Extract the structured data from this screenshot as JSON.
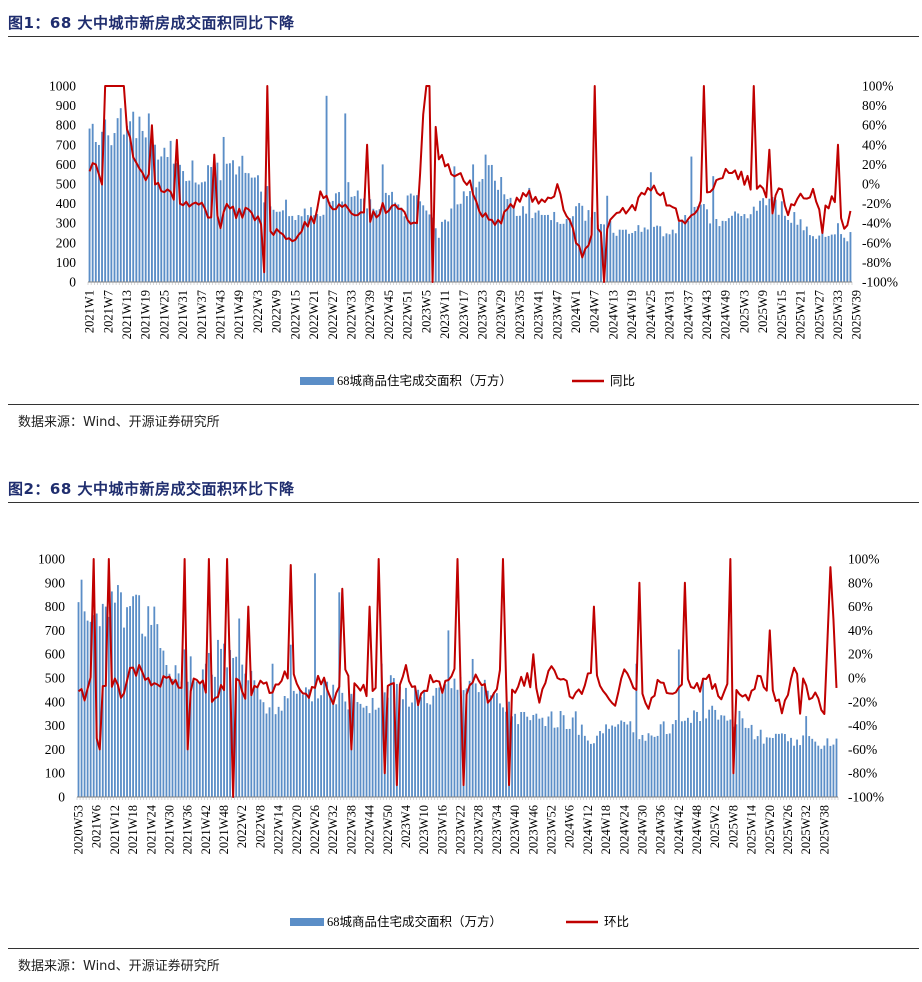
{
  "colors": {
    "bar": "#5b8ec7",
    "line": "#c00000",
    "title": "#1f2d6e"
  },
  "figures": [
    {
      "title": "图1：68 大中城市新房成交面积同比下降",
      "source": "数据来源：Wind、开源证券研究所",
      "legend": {
        "bar": "68城商品住宅成交面积（万方）",
        "line": "同比"
      }
    },
    {
      "title": "图2：68 大中城市新房成交面积环比下降",
      "source": "数据来源：Wind、开源证券研究所",
      "legend": {
        "bar": "68城商品住宅成交面积（万方）",
        "line": "环比"
      }
    }
  ],
  "chart_data": [
    {
      "type": "bar+line",
      "title": "图1：68 大中城市新房成交面积同比下降",
      "x_start": {
        "year": 2021,
        "week": 1
      },
      "x_count": 245,
      "x_tick_labels": [
        "2021W1",
        "2021W7",
        "2021W13",
        "2021W19",
        "2021W25",
        "2021W31",
        "2021W37",
        "2021W43",
        "2021W49",
        "2022W3",
        "2022W9",
        "2022W15",
        "2022W21",
        "2022W27",
        "2022W33",
        "2022W39",
        "2022W45",
        "2022W51",
        "2023W5",
        "2023W11",
        "2023W17",
        "2023W23",
        "2023W29",
        "2023W35",
        "2023W41",
        "2023W47",
        "2024W1",
        "2024W7",
        "2024W13",
        "2024W19",
        "2024W25",
        "2024W31",
        "2024W37",
        "2024W43",
        "2024W49",
        "2025W3",
        "2025W9",
        "2025W15",
        "2025W21",
        "2025W27",
        "2025W33",
        "2025W39"
      ],
      "y_left": {
        "min": 0,
        "max": 1000,
        "ticks": [
          "0",
          "100",
          "200",
          "300",
          "400",
          "500",
          "600",
          "700",
          "800",
          "900",
          "1000"
        ]
      },
      "y_right": {
        "min": -100,
        "max": 100,
        "ticks": [
          "-100%",
          "-80%",
          "-60%",
          "-40%",
          "-20%",
          "0%",
          "20%",
          "40%",
          "60%",
          "80%",
          "100%"
        ]
      },
      "bar_anchors": [
        [
          0,
          760
        ],
        [
          6,
          800
        ],
        [
          10,
          840
        ],
        [
          16,
          780
        ],
        [
          22,
          700
        ],
        [
          28,
          580
        ],
        [
          34,
          560
        ],
        [
          40,
          560
        ],
        [
          44,
          620
        ],
        [
          48,
          600
        ],
        [
          52,
          560
        ],
        [
          56,
          470
        ],
        [
          60,
          380
        ],
        [
          66,
          330
        ],
        [
          72,
          360
        ],
        [
          78,
          420
        ],
        [
          82,
          480
        ],
        [
          86,
          470
        ],
        [
          90,
          400
        ],
        [
          96,
          440
        ],
        [
          100,
          360
        ],
        [
          104,
          450
        ],
        [
          110,
          380
        ],
        [
          112,
          250
        ],
        [
          116,
          380
        ],
        [
          120,
          460
        ],
        [
          124,
          520
        ],
        [
          128,
          560
        ],
        [
          132,
          540
        ],
        [
          136,
          360
        ],
        [
          140,
          390
        ],
        [
          146,
          340
        ],
        [
          150,
          320
        ],
        [
          156,
          380
        ],
        [
          162,
          340
        ],
        [
          166,
          300
        ],
        [
          170,
          260
        ],
        [
          176,
          300
        ],
        [
          180,
          290
        ],
        [
          186,
          230
        ],
        [
          190,
          310
        ],
        [
          196,
          370
        ],
        [
          202,
          320
        ],
        [
          208,
          330
        ],
        [
          212,
          360
        ],
        [
          216,
          420
        ],
        [
          222,
          380
        ],
        [
          228,
          310
        ],
        [
          232,
          230
        ],
        [
          236,
          260
        ],
        [
          240,
          230
        ],
        [
          244,
          240
        ]
      ],
      "bar_spikes": [
        [
          8,
          760
        ],
        [
          13,
          820
        ],
        [
          19,
          860
        ],
        [
          26,
          720
        ],
        [
          33,
          620
        ],
        [
          43,
          740
        ],
        [
          63,
          420
        ],
        [
          76,
          950
        ],
        [
          82,
          860
        ],
        [
          94,
          600
        ],
        [
          117,
          590
        ],
        [
          123,
          600
        ],
        [
          127,
          650
        ],
        [
          141,
          480
        ],
        [
          166,
          440
        ],
        [
          180,
          560
        ],
        [
          193,
          640
        ],
        [
          200,
          540
        ],
        [
          228,
          320
        ],
        [
          240,
          300
        ]
      ],
      "line_anchors": [
        [
          0,
          10
        ],
        [
          2,
          25
        ],
        [
          4,
          5
        ],
        [
          6,
          200
        ],
        [
          10,
          150
        ],
        [
          12,
          60
        ],
        [
          14,
          30
        ],
        [
          16,
          10
        ],
        [
          20,
          5
        ],
        [
          24,
          -5
        ],
        [
          28,
          -20
        ],
        [
          32,
          -25
        ],
        [
          36,
          -20
        ],
        [
          38,
          -35
        ],
        [
          40,
          -30
        ],
        [
          44,
          -25
        ],
        [
          48,
          -30
        ],
        [
          52,
          -30
        ],
        [
          56,
          -45
        ],
        [
          60,
          -50
        ],
        [
          64,
          -60
        ],
        [
          68,
          -45
        ],
        [
          72,
          -35
        ],
        [
          74,
          -10
        ],
        [
          78,
          -20
        ],
        [
          82,
          -25
        ],
        [
          86,
          -30
        ],
        [
          90,
          -35
        ],
        [
          94,
          -25
        ],
        [
          98,
          -20
        ],
        [
          102,
          -35
        ],
        [
          105,
          -40
        ],
        [
          108,
          120
        ],
        [
          112,
          30
        ],
        [
          116,
          15
        ],
        [
          120,
          5
        ],
        [
          122,
          5
        ],
        [
          124,
          -20
        ],
        [
          128,
          -40
        ],
        [
          132,
          -35
        ],
        [
          136,
          -20
        ],
        [
          140,
          -10
        ],
        [
          144,
          -15
        ],
        [
          148,
          -10
        ],
        [
          150,
          -5
        ],
        [
          154,
          -40
        ],
        [
          158,
          -70
        ],
        [
          162,
          -50
        ],
        [
          166,
          -40
        ],
        [
          170,
          -30
        ],
        [
          174,
          -25
        ],
        [
          178,
          -10
        ],
        [
          182,
          -5
        ],
        [
          186,
          -20
        ],
        [
          190,
          -40
        ],
        [
          194,
          -30
        ],
        [
          198,
          -5
        ],
        [
          202,
          5
        ],
        [
          206,
          15
        ],
        [
          210,
          5
        ],
        [
          214,
          -5
        ],
        [
          218,
          -10
        ],
        [
          222,
          -5
        ],
        [
          224,
          -30
        ],
        [
          228,
          -10
        ],
        [
          232,
          -20
        ],
        [
          236,
          -25
        ],
        [
          238,
          -15
        ],
        [
          240,
          -30
        ],
        [
          242,
          -45
        ],
        [
          244,
          -28
        ]
      ],
      "line_spikes": [
        [
          7,
          100
        ],
        [
          20,
          60
        ],
        [
          28,
          45
        ],
        [
          40,
          30
        ],
        [
          42,
          -45
        ],
        [
          56,
          -90
        ],
        [
          57,
          120
        ],
        [
          89,
          40
        ],
        [
          109,
          120
        ],
        [
          110,
          -100
        ],
        [
          162,
          120
        ],
        [
          165,
          -100
        ],
        [
          197,
          120
        ],
        [
          213,
          120
        ],
        [
          219,
          -30
        ],
        [
          218,
          35
        ],
        [
          232,
          -5
        ],
        [
          235,
          -50
        ],
        [
          240,
          40
        ]
      ],
      "notes": "Weekly series approx. 2021W1–2025W41; values estimated from the figure."
    },
    {
      "type": "bar+line",
      "title": "图2：68 大中城市新房成交面积环比下降",
      "x_start": {
        "year": 2020,
        "week": 53
      },
      "x_count": 251,
      "x_tick_labels": [
        "2020W53",
        "2021W6",
        "2021W12",
        "2021W18",
        "2021W24",
        "2021W30",
        "2021W36",
        "2021W42",
        "2021W48",
        "2022W2",
        "2022W8",
        "2022W14",
        "2022W20",
        "2022W26",
        "2022W32",
        "2022W38",
        "2022W44",
        "2022W50",
        "2023W4",
        "2023W10",
        "2023W16",
        "2023W22",
        "2023W28",
        "2023W34",
        "2023W40",
        "2023W46",
        "2023W52",
        "2024W6",
        "2024W12",
        "2024W18",
        "2024W24",
        "2024W30",
        "2024W36",
        "2024W42",
        "2024W48",
        "2025W2",
        "2025W8",
        "2025W14",
        "2025W20",
        "2025W26",
        "2025W32",
        "2025W38"
      ],
      "y_left": {
        "min": 0,
        "max": 1000,
        "ticks": [
          "0",
          "100",
          "200",
          "300",
          "400",
          "500",
          "600",
          "700",
          "800",
          "900",
          "1000"
        ]
      },
      "y_right": {
        "min": -100,
        "max": 100,
        "ticks": [
          "-100%",
          "-80%",
          "-60%",
          "-40%",
          "-20%",
          "0%",
          "20%",
          "40%",
          "60%",
          "80%",
          "100%"
        ]
      },
      "bar_anchors": [
        [
          0,
          860
        ],
        [
          6,
          780
        ],
        [
          12,
          820
        ],
        [
          18,
          800
        ],
        [
          24,
          720
        ],
        [
          30,
          560
        ],
        [
          36,
          540
        ],
        [
          42,
          560
        ],
        [
          48,
          600
        ],
        [
          54,
          580
        ],
        [
          58,
          460
        ],
        [
          62,
          380
        ],
        [
          68,
          400
        ],
        [
          74,
          450
        ],
        [
          80,
          460
        ],
        [
          86,
          430
        ],
        [
          92,
          420
        ],
        [
          98,
          400
        ],
        [
          104,
          480
        ],
        [
          110,
          430
        ],
        [
          116,
          440
        ],
        [
          122,
          460
        ],
        [
          128,
          520
        ],
        [
          134,
          460
        ],
        [
          140,
          400
        ],
        [
          146,
          340
        ],
        [
          152,
          330
        ],
        [
          158,
          340
        ],
        [
          164,
          300
        ],
        [
          170,
          250
        ],
        [
          176,
          300
        ],
        [
          182,
          290
        ],
        [
          188,
          260
        ],
        [
          194,
          300
        ],
        [
          200,
          330
        ],
        [
          206,
          360
        ],
        [
          212,
          350
        ],
        [
          218,
          340
        ],
        [
          224,
          260
        ],
        [
          230,
          250
        ],
        [
          236,
          240
        ],
        [
          244,
          230
        ],
        [
          250,
          250
        ]
      ],
      "bar_spikes": [
        [
          2,
          780
        ],
        [
          9,
          800
        ],
        [
          14,
          860
        ],
        [
          19,
          850
        ],
        [
          25,
          800
        ],
        [
          35,
          620
        ],
        [
          46,
          660
        ],
        [
          53,
          750
        ],
        [
          64,
          560
        ],
        [
          70,
          640
        ],
        [
          78,
          940
        ],
        [
          86,
          860
        ],
        [
          100,
          560
        ],
        [
          122,
          700
        ],
        [
          130,
          580
        ],
        [
          164,
          360
        ],
        [
          184,
          560
        ],
        [
          198,
          620
        ],
        [
          206,
          500
        ],
        [
          240,
          340
        ]
      ],
      "line_anchors": [
        [
          0,
          -10
        ],
        [
          2,
          -15
        ],
        [
          4,
          0
        ],
        [
          6,
          -50
        ],
        [
          8,
          -10
        ],
        [
          10,
          -15
        ],
        [
          12,
          0
        ],
        [
          14,
          -20
        ],
        [
          16,
          0
        ],
        [
          20,
          10
        ],
        [
          24,
          -10
        ],
        [
          28,
          0
        ],
        [
          32,
          -5
        ],
        [
          36,
          -10
        ],
        [
          40,
          0
        ],
        [
          44,
          -15
        ],
        [
          48,
          -5
        ],
        [
          52,
          0
        ],
        [
          56,
          -20
        ],
        [
          60,
          0
        ],
        [
          64,
          -10
        ],
        [
          68,
          5
        ],
        [
          72,
          -5
        ],
        [
          76,
          -15
        ],
        [
          80,
          0
        ],
        [
          84,
          -20
        ],
        [
          88,
          10
        ],
        [
          92,
          -5
        ],
        [
          96,
          -15
        ],
        [
          100,
          0
        ],
        [
          104,
          -10
        ],
        [
          108,
          10
        ],
        [
          112,
          -20
        ],
        [
          116,
          0
        ],
        [
          120,
          -10
        ],
        [
          124,
          5
        ],
        [
          128,
          -10
        ],
        [
          132,
          0
        ],
        [
          136,
          -20
        ],
        [
          140,
          10
        ],
        [
          144,
          -10
        ],
        [
          148,
          0
        ],
        [
          152,
          -15
        ],
        [
          156,
          5
        ],
        [
          160,
          -5
        ],
        [
          164,
          -15
        ],
        [
          168,
          0
        ],
        [
          172,
          -5
        ],
        [
          176,
          -25
        ],
        [
          180,
          5
        ],
        [
          184,
          -5
        ],
        [
          188,
          -20
        ],
        [
          192,
          0
        ],
        [
          196,
          -15
        ],
        [
          200,
          5
        ],
        [
          204,
          -10
        ],
        [
          208,
          0
        ],
        [
          212,
          -15
        ],
        [
          216,
          -5
        ],
        [
          220,
          -20
        ],
        [
          224,
          0
        ],
        [
          228,
          -10
        ],
        [
          232,
          -25
        ],
        [
          236,
          5
        ],
        [
          240,
          -10
        ],
        [
          244,
          -20
        ],
        [
          246,
          -30
        ],
        [
          248,
          95
        ],
        [
          250,
          -5
        ]
      ],
      "line_spikes": [
        [
          5,
          100
        ],
        [
          7,
          -60
        ],
        [
          10,
          100
        ],
        [
          35,
          100
        ],
        [
          36,
          -60
        ],
        [
          43,
          100
        ],
        [
          49,
          100
        ],
        [
          51,
          -100
        ],
        [
          56,
          60
        ],
        [
          70,
          95
        ],
        [
          87,
          75
        ],
        [
          90,
          -60
        ],
        [
          96,
          60
        ],
        [
          99,
          100
        ],
        [
          101,
          -80
        ],
        [
          105,
          -90
        ],
        [
          125,
          100
        ],
        [
          127,
          -90
        ],
        [
          140,
          100
        ],
        [
          142,
          -90
        ],
        [
          150,
          20
        ],
        [
          170,
          60
        ],
        [
          185,
          80
        ],
        [
          200,
          80
        ],
        [
          215,
          100
        ],
        [
          216,
          -80
        ],
        [
          228,
          40
        ],
        [
          238,
          -30
        ]
      ],
      "notes": "Weekly series approx. 2020W53–2025W41; values estimated from the figure."
    }
  ]
}
